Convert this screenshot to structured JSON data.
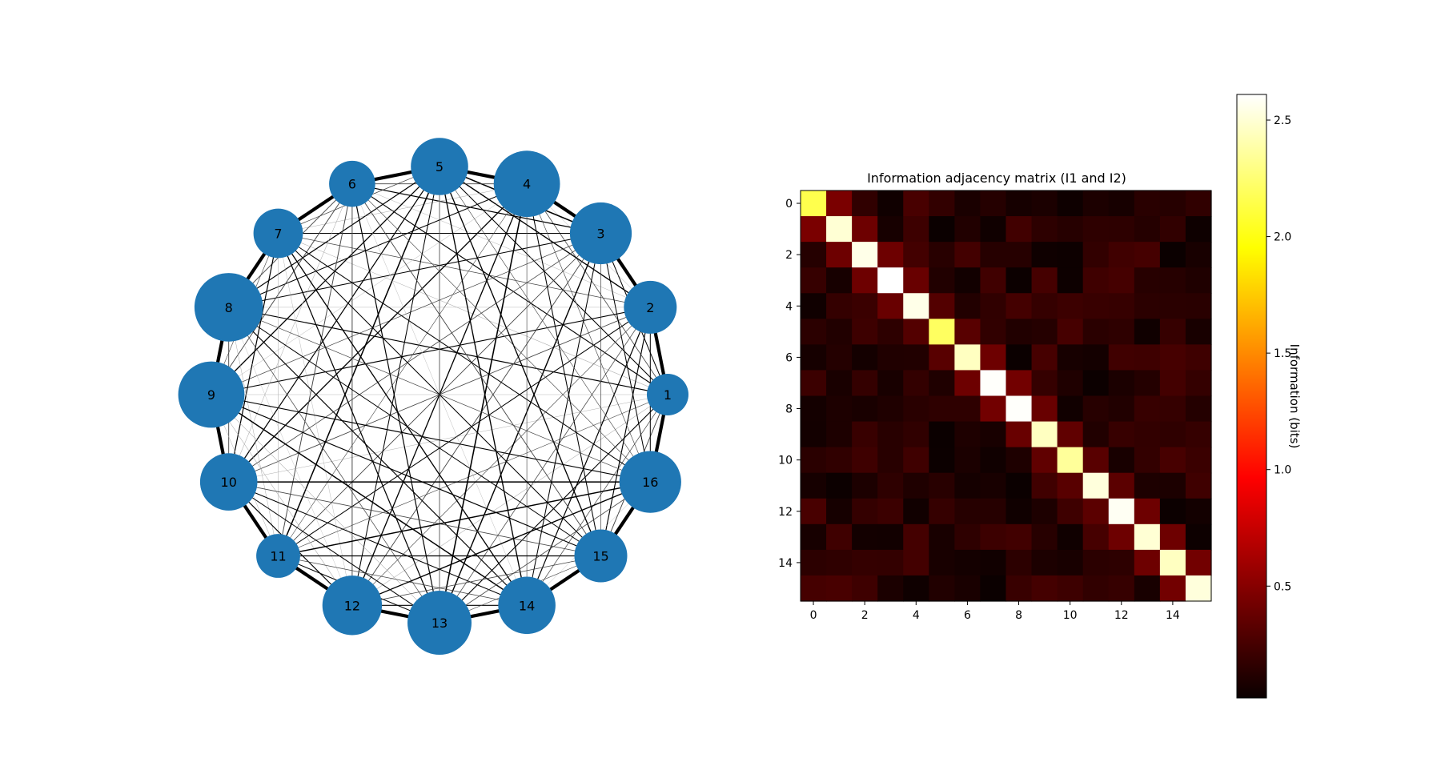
{
  "chart_data": [
    {
      "type": "network",
      "nodes": [
        "1",
        "2",
        "3",
        "4",
        "5",
        "6",
        "7",
        "8",
        "9",
        "10",
        "11",
        "12",
        "13",
        "14",
        "15",
        "16"
      ],
      "node_color": "#1f77b4",
      "node_values": [
        0.38,
        0.48,
        0.56,
        0.6,
        0.52,
        0.42,
        0.45,
        0.62,
        0.6,
        0.52,
        0.4,
        0.54,
        0.58,
        0.52,
        0.48,
        0.56
      ],
      "edge_color": "#000000"
    },
    {
      "type": "heatmap",
      "title": "Information adjacency matrix (I1 and I2)",
      "colormap": "hot",
      "size": 16,
      "xticks": [
        0,
        2,
        4,
        6,
        8,
        10,
        12,
        14
      ],
      "yticks": [
        0,
        2,
        4,
        6,
        8,
        10,
        12,
        14
      ],
      "colorbar_label": "Information (bits)",
      "colorbar_ticks": [
        0.5,
        1.0,
        1.5,
        2.0,
        2.5
      ],
      "colorbar_tick_labels": [
        "0.5",
        "1.0",
        "1.5",
        "2.0",
        "2.5"
      ],
      "vmin": 0.02,
      "vmax": 2.61,
      "diagonal": [
        2.15,
        2.5,
        2.55,
        2.61,
        2.55,
        2.2,
        2.45,
        2.6,
        2.6,
        2.45,
        2.35,
        2.52,
        2.58,
        2.5,
        2.45,
        2.52
      ],
      "adjacent": [
        0.45,
        0.4,
        0.4,
        0.38,
        0.3,
        0.32,
        0.4,
        0.42,
        0.38,
        0.35,
        0.32,
        0.33,
        0.4,
        0.4,
        0.42
      ],
      "background_level": 0.13
    }
  ]
}
